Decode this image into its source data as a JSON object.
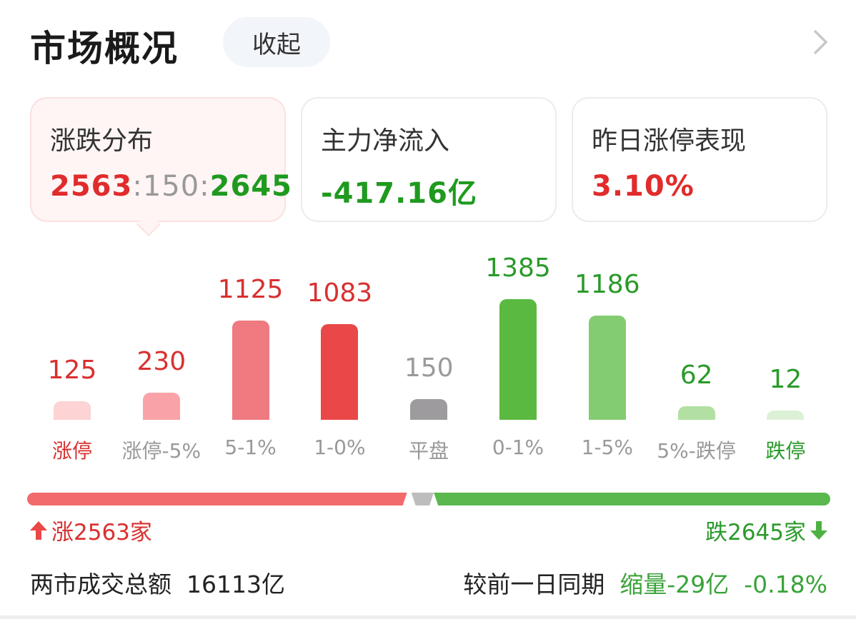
{
  "header": {
    "title": "市场概况",
    "collapse_label": "收起",
    "chevron_icon": "chevron-right-icon"
  },
  "cards": [
    {
      "label": "涨跌分布",
      "value_up": "2563",
      "sep1": ":",
      "value_flat": "150",
      "sep2": ":",
      "value_down": "2645",
      "active": true
    },
    {
      "label": "主力净流入",
      "value": "-417.16亿",
      "color": "#1f9a1f"
    },
    {
      "label": "昨日涨停表现",
      "value": "3.10%",
      "color": "#e02c2c"
    }
  ],
  "chart_data": {
    "type": "bar",
    "categories": [
      "涨停",
      "涨停-5%",
      "5-1%",
      "1-0%",
      "平盘",
      "0-1%",
      "1-5%",
      "5%-跌停",
      "跌停"
    ],
    "values": [
      125,
      230,
      1125,
      1083,
      150,
      1385,
      1186,
      62,
      12
    ],
    "bar_colors": [
      "#fdd3d3",
      "#f9a3a8",
      "#ef7a80",
      "#ea4748",
      "#9d9b9e",
      "#5ab940",
      "#84cc72",
      "#b2e0a2",
      "#dcf0d6"
    ],
    "value_colors": [
      "#d83030",
      "#d83030",
      "#d83030",
      "#d83030",
      "#9a9a9a",
      "#2a9a2a",
      "#2a9a2a",
      "#2a9a2a",
      "#2a9a2a"
    ],
    "label_colors": [
      "#d83030",
      "#999999",
      "#999999",
      "#999999",
      "#999999",
      "#999999",
      "#999999",
      "#999999",
      "#2a9a2a"
    ]
  },
  "breadth": {
    "up_count": 2563,
    "flat_count": 150,
    "down_count": 2645,
    "up_label": "涨2563家",
    "down_label": "跌2645家",
    "up_color": "#f26a6c",
    "flat_color": "#bdbdbd",
    "down_color": "#5ab84f"
  },
  "footer": {
    "turnover_label": "两市成交总额",
    "turnover_value": "16113亿",
    "compare_label": "较前一日同期",
    "compare_change": "缩量-29亿",
    "compare_pct": "-0.18%"
  }
}
